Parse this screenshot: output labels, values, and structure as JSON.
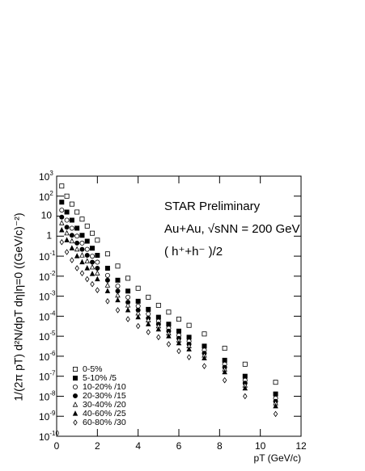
{
  "chart_data": {
    "type": "scatter",
    "annotations": [
      "STAR Preliminary",
      "Au+Au, √sNN = 200 GeV",
      "( h⁺+h⁻ )/2"
    ],
    "x_label": "pT (GeV/c)",
    "y_label": "1/(2π pT) d²N/dpT dη|η=0 ((GeV/c)⁻²)",
    "log_y": true,
    "legend": "lower left",
    "xlim": [
      0,
      12
    ],
    "xticks": [
      0,
      2,
      4,
      6,
      8,
      10,
      12
    ],
    "ylim": [
      1e-10,
      1000
    ],
    "yticks": [
      {
        "value": 1000,
        "label": "10",
        "sup": "3"
      },
      {
        "value": 100,
        "label": "10",
        "sup": "2"
      },
      10,
      1,
      {
        "value": 0.1,
        "label": "10",
        "sup": "-1"
      },
      {
        "value": 0.01,
        "label": "10",
        "sup": "-2"
      },
      {
        "value": 0.001,
        "label": "10",
        "sup": "-3"
      },
      {
        "value": 0.0001,
        "label": "10",
        "sup": "-4"
      },
      {
        "value": 1e-05,
        "label": "10",
        "sup": "-5"
      },
      {
        "value": 1e-06,
        "label": "10",
        "sup": "-6"
      },
      {
        "value": 1e-07,
        "label": "10",
        "sup": "-7"
      },
      {
        "value": 1e-08,
        "label": "10",
        "sup": "-8"
      },
      {
        "value": 1e-09,
        "label": "10",
        "sup": "-9"
      },
      {
        "value": 1e-10,
        "label": "10",
        "sup": "-10"
      }
    ],
    "x": [
      0.25,
      0.5,
      0.75,
      1,
      1.25,
      1.5,
      1.75,
      2,
      2.5,
      3,
      3.5,
      4,
      4.5,
      5,
      5.5,
      6,
      6.5,
      7.25,
      8.25,
      9.25,
      10.75
    ],
    "series": [
      {
        "name": "0-5%",
        "marker": "open-square",
        "color": "#000000",
        "values": [
          320,
          100,
          40,
          16,
          7.1,
          3.2,
          1.4,
          0.63,
          0.13,
          0.032,
          0.0079,
          0.0025,
          0.00089,
          0.00035,
          0.00016,
          7.1e-05,
          3.5e-05,
          1.3e-05,
          2.5e-06,
          4e-07,
          5e-08
        ]
      },
      {
        "name": "5-10% /5",
        "marker": "filled-square",
        "color": "#000000",
        "values": [
          50,
          16,
          6.3,
          2.5,
          1.1,
          0.56,
          0.25,
          0.11,
          0.025,
          0.0063,
          0.0018,
          0.00056,
          0.00022,
          8.9e-05,
          4e-05,
          1.8e-05,
          8.9e-06,
          3.2e-06,
          6.3e-07,
          1e-07,
          1.3e-08
        ]
      },
      {
        "name": "10-20% /10",
        "marker": "open-circle",
        "color": "#000000",
        "values": [
          20,
          6.3,
          2.5,
          1,
          0.45,
          0.22,
          0.1,
          0.05,
          0.011,
          0.0032,
          0.00089,
          0.00032,
          0.00013,
          5.6e-05,
          2.5e-05,
          1.1e-05,
          5.6e-06,
          2e-06,
          4e-07,
          6.3e-08,
          7.9e-09
        ]
      },
      {
        "name": "20-30% /15",
        "marker": "filled-circle",
        "color": "#000000",
        "values": [
          8.9,
          2.8,
          1.1,
          0.45,
          0.22,
          0.11,
          0.05,
          0.025,
          0.0063,
          0.0018,
          0.0005,
          0.0002,
          7.9e-05,
          4e-05,
          1.8e-05,
          7.9e-06,
          4e-06,
          1.4e-06,
          2.8e-07,
          4.5e-08,
          5.6e-09
        ]
      },
      {
        "name": "30-40% /20",
        "marker": "open-triangle",
        "color": "#000000",
        "values": [
          4.5,
          1.4,
          0.56,
          0.22,
          0.11,
          0.056,
          0.028,
          0.014,
          0.0035,
          0.0011,
          0.00035,
          0.00014,
          6.3e-05,
          3.2e-05,
          1.4e-05,
          6.3e-06,
          3.2e-06,
          1.1e-06,
          2.2e-07,
          3.5e-08,
          4.5e-09
        ]
      },
      {
        "name": "40-60% /25",
        "marker": "filled-triangle",
        "color": "#000000",
        "values": [
          2,
          0.63,
          0.25,
          0.1,
          0.05,
          0.025,
          0.013,
          0.0071,
          0.0018,
          0.00063,
          0.0002,
          8.9e-05,
          4e-05,
          2.2e-05,
          1e-05,
          4.5e-06,
          2.2e-06,
          7.9e-07,
          1.6e-07,
          2.5e-08,
          3.2e-09
        ]
      },
      {
        "name": "60-80% /30",
        "marker": "open-diamond",
        "color": "#000000",
        "values": [
          0.5,
          0.16,
          0.063,
          0.025,
          0.014,
          0.0071,
          0.004,
          0.002,
          0.00056,
          0.0002,
          7.1e-05,
          3.2e-05,
          1.6e-05,
          8.9e-06,
          4e-06,
          1.8e-06,
          8.9e-07,
          3.2e-07,
          6.3e-08,
          1e-08,
          1.3e-09
        ]
      }
    ]
  }
}
